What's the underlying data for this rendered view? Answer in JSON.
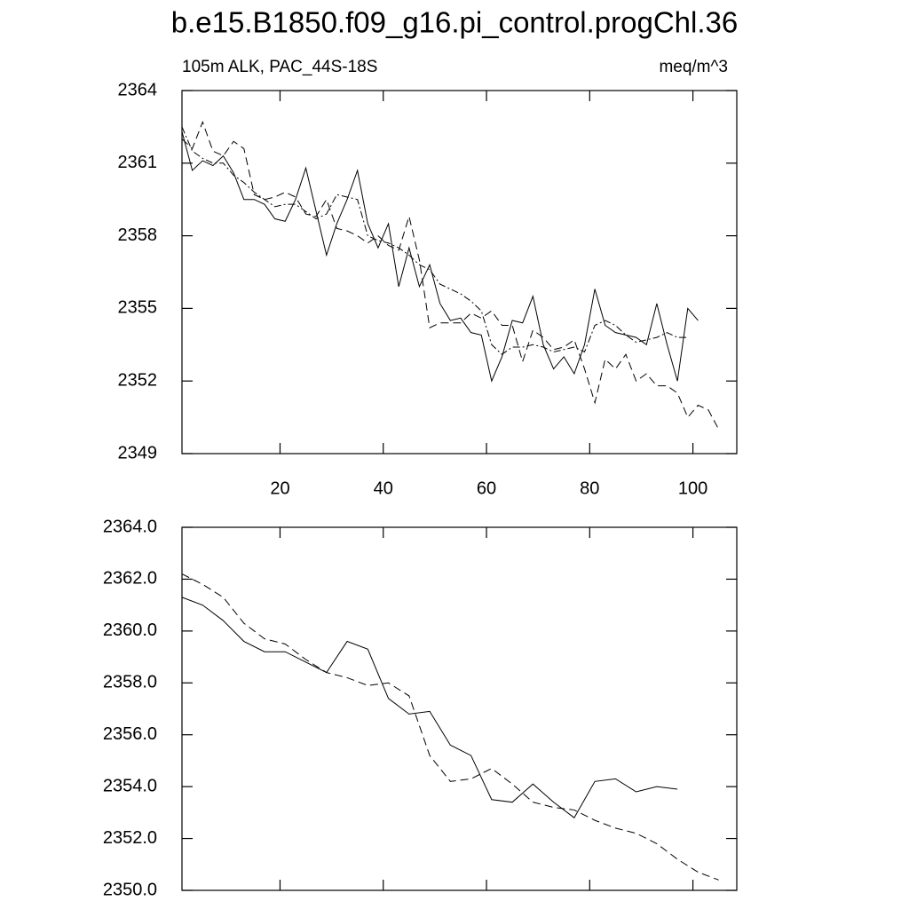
{
  "chart_data": [
    {
      "type": "line",
      "title": "b.e15.B1850.f09_g16.pi_control.progChl.36",
      "left_subtitle": "105m ALK, PAC_44S-18S",
      "right_subtitle": "meq/m^3",
      "x": [
        1,
        3,
        5,
        7,
        9,
        11,
        13,
        15,
        17,
        19,
        21,
        23,
        25,
        27,
        29,
        31,
        33,
        35,
        37,
        39,
        41,
        43,
        45,
        47,
        49,
        51,
        53,
        55,
        57,
        59,
        61,
        63,
        65,
        67,
        69,
        71,
        73,
        75,
        77,
        79,
        81,
        83,
        85,
        87,
        89,
        91,
        93,
        95,
        97,
        99,
        101,
        103,
        105
      ],
      "series": [
        {
          "color": "#000000",
          "dash": "none",
          "values": [
            2362.3,
            2360.7,
            2361.1,
            2360.9,
            2361.3,
            2360.6,
            2359.5,
            2359.5,
            2359.3,
            2358.7,
            2358.6,
            2359.5,
            2360.8,
            2359.0,
            2357.2,
            2358.5,
            2359.5,
            2360.7,
            2358.5,
            2357.5,
            2358.5,
            2355.9,
            2357.5,
            2355.9,
            2356.8,
            2355.2,
            2354.5,
            2354.6,
            2354.0,
            2353.9,
            2352.0,
            2353.0,
            2354.5,
            2354.4,
            2355.5,
            2353.5,
            2352.5,
            2353.0,
            2352.3,
            2353.5,
            2355.8,
            2354.3,
            2354.0,
            2353.9,
            2353.8,
            2353.5,
            2355.2,
            2353.5,
            2352.0,
            2355.0,
            2354.5,
            null,
            null
          ]
        },
        {
          "color": "#000000",
          "dash": "9,5",
          "values": [
            2362.0,
            2361.6,
            2362.7,
            2361.5,
            2361.3,
            2361.9,
            2361.6,
            2359.7,
            2359.5,
            2359.6,
            2359.8,
            2359.6,
            2358.9,
            2358.8,
            2359.5,
            2358.3,
            2358.2,
            2358.0,
            2357.7,
            2358.0,
            2357.6,
            2357.4,
            2358.8,
            2357.0,
            2354.2,
            2354.4,
            2354.4,
            2354.4,
            2354.8,
            2354.6,
            2354.9,
            2354.3,
            2354.3,
            2352.8,
            2354.1,
            2353.8,
            2353.3,
            2353.4,
            2353.7,
            2352.5,
            2351.1,
            2352.9,
            2352.5,
            2353.1,
            2352.0,
            2352.3,
            2351.8,
            2351.8,
            2351.5,
            2350.5,
            2351.0,
            2350.8,
            2350.0
          ]
        },
        {
          "color": "#000000",
          "dash": "8,3,2,3",
          "values": [
            2362.5,
            2361.5,
            2361.2,
            2361.0,
            2361.0,
            2360.5,
            2360.2,
            2359.8,
            2359.5,
            2359.2,
            2359.3,
            2359.3,
            2359.0,
            2358.7,
            2358.9,
            2359.7,
            2359.6,
            2359.5,
            2358.0,
            2357.8,
            2357.7,
            2357.5,
            2357.2,
            2356.8,
            2356.6,
            2356.0,
            2355.8,
            2355.6,
            2355.3,
            2354.9,
            2353.5,
            2353.1,
            2353.4,
            2353.4,
            2353.5,
            2353.4,
            2353.2,
            2353.3,
            2353.4,
            2353.2,
            2354.3,
            2354.5,
            2354.3,
            2353.9,
            2353.6,
            2353.7,
            2353.8,
            2354.0,
            2353.8,
            2353.8,
            null,
            null,
            null
          ]
        }
      ],
      "xlim": [
        1,
        108.5
      ],
      "xticks": [
        20,
        40,
        60,
        80,
        100
      ],
      "xtick_labels": true,
      "ylim": [
        2349,
        2364
      ],
      "yticks": [
        2349,
        2352,
        2355,
        2358,
        2361,
        2364
      ]
    },
    {
      "type": "line",
      "x": [
        1,
        5,
        9,
        13,
        17,
        21,
        25,
        29,
        33,
        37,
        41,
        45,
        49,
        53,
        57,
        61,
        65,
        69,
        73,
        77,
        81,
        85,
        89,
        93,
        97,
        101,
        105
      ],
      "series": [
        {
          "color": "#000000",
          "dash": "none",
          "values": [
            2361.3,
            2361.0,
            2360.4,
            2359.6,
            2359.2,
            2359.2,
            2358.8,
            2358.4,
            2359.6,
            2359.3,
            2357.4,
            2356.8,
            2356.9,
            2355.6,
            2355.2,
            2353.5,
            2353.4,
            2354.1,
            2353.4,
            2352.8,
            2354.2,
            2354.3,
            2353.8,
            2354.0,
            2353.9,
            null,
            null
          ]
        },
        {
          "color": "#000000",
          "dash": "9,5",
          "values": [
            2362.2,
            2361.8,
            2361.3,
            2360.3,
            2359.7,
            2359.5,
            2358.9,
            2358.4,
            2358.2,
            2357.9,
            2358.0,
            2357.5,
            2355.2,
            2354.2,
            2354.3,
            2354.7,
            2354.1,
            2353.4,
            2353.2,
            2353.1,
            2352.7,
            2352.4,
            2352.2,
            2351.8,
            2351.2,
            2350.7,
            2350.4
          ]
        }
      ],
      "xlim": [
        1,
        108.5
      ],
      "xticks": [
        20,
        40,
        60,
        80,
        100
      ],
      "xtick_labels": false,
      "ylim": [
        2350,
        2364
      ],
      "yticks": [
        {
          "value": 2350,
          "label": "2350.0"
        },
        {
          "value": 2352,
          "label": "2352.0"
        },
        {
          "value": 2354,
          "label": "2354.0"
        },
        {
          "value": 2356,
          "label": "2356.0"
        },
        {
          "value": 2358,
          "label": "2358.0"
        },
        {
          "value": 2360,
          "label": "2360.0"
        },
        {
          "value": 2362,
          "label": "2362.0"
        },
        {
          "value": 2364,
          "label": "2364.0"
        }
      ]
    }
  ]
}
